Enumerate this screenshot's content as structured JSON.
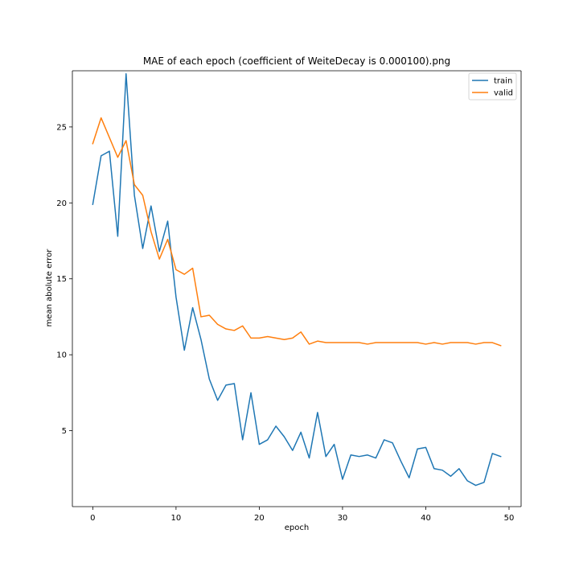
{
  "chart_data": {
    "type": "line",
    "title": "MAE of each epoch (coefficient of WeiteDecay is 0.000100).png",
    "xlabel": "epoch",
    "ylabel": "mean abolute error",
    "xlim": [
      -2.45,
      51.45
    ],
    "ylim": [
      0.0,
      28.7
    ],
    "xticks": [
      0,
      10,
      20,
      30,
      40,
      50
    ],
    "yticks": [
      5,
      10,
      15,
      20,
      25
    ],
    "grid": false,
    "legend_position": "top-right",
    "series": [
      {
        "name": "train",
        "color": "#1f77b4",
        "x": [
          0,
          1,
          2,
          3,
          4,
          5,
          6,
          7,
          8,
          9,
          10,
          11,
          12,
          13,
          14,
          15,
          16,
          17,
          18,
          19,
          20,
          21,
          22,
          23,
          24,
          25,
          26,
          27,
          28,
          29,
          30,
          31,
          32,
          33,
          34,
          35,
          36,
          37,
          38,
          39,
          40,
          41,
          42,
          43,
          44,
          45,
          46,
          47,
          48,
          49
        ],
        "values": [
          19.9,
          23.1,
          23.4,
          17.8,
          28.5,
          20.5,
          17.0,
          19.8,
          16.8,
          18.8,
          13.8,
          10.3,
          13.1,
          11.0,
          8.4,
          7.0,
          8.0,
          8.1,
          4.4,
          7.5,
          4.1,
          4.4,
          5.3,
          4.6,
          3.7,
          4.9,
          3.2,
          6.2,
          3.3,
          4.1,
          1.8,
          3.4,
          3.3,
          3.4,
          3.2,
          4.4,
          4.2,
          3.0,
          1.9,
          3.8,
          3.9,
          2.5,
          2.4,
          2.0,
          2.5,
          1.7,
          1.4,
          1.6,
          3.5,
          3.3
        ]
      },
      {
        "name": "valid",
        "color": "#ff7f0e",
        "x": [
          0,
          1,
          2,
          3,
          4,
          5,
          6,
          7,
          8,
          9,
          10,
          11,
          12,
          13,
          14,
          15,
          16,
          17,
          18,
          19,
          20,
          21,
          22,
          23,
          24,
          25,
          26,
          27,
          28,
          29,
          30,
          31,
          32,
          33,
          34,
          35,
          36,
          37,
          38,
          39,
          40,
          41,
          42,
          43,
          44,
          45,
          46,
          47,
          48,
          49
        ],
        "values": [
          23.9,
          25.6,
          24.3,
          23.0,
          24.1,
          21.2,
          20.5,
          18.1,
          16.3,
          17.6,
          15.6,
          15.3,
          15.7,
          12.5,
          12.6,
          12.0,
          11.7,
          11.6,
          11.9,
          11.1,
          11.1,
          11.2,
          11.1,
          11.0,
          11.1,
          11.5,
          10.7,
          10.9,
          10.8,
          10.8,
          10.8,
          10.8,
          10.8,
          10.7,
          10.8,
          10.8,
          10.8,
          10.8,
          10.8,
          10.8,
          10.7,
          10.8,
          10.7,
          10.8,
          10.8,
          10.8,
          10.7,
          10.8,
          10.8,
          10.6
        ]
      }
    ]
  }
}
